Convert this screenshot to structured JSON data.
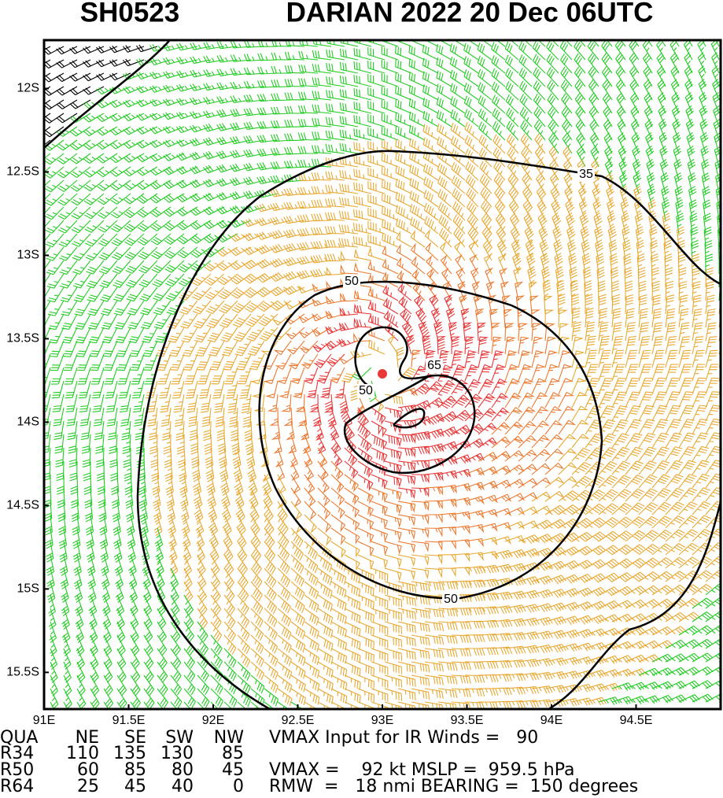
{
  "chart_data": {
    "type": "wind-barb",
    "storm_id": "SH0523",
    "title": "DARIAN 2022 20 Dec 06UTC",
    "xlim": [
      91,
      95
    ],
    "ylim": [
      -11.71,
      -15.72
    ],
    "xticks": [
      {
        "value": 91,
        "label": "91E"
      },
      {
        "value": 91.5,
        "label": "91.5E"
      },
      {
        "value": 92,
        "label": "92E"
      },
      {
        "value": 92.5,
        "label": "92.5E"
      },
      {
        "value": 93,
        "label": "93E"
      },
      {
        "value": 93.5,
        "label": "93.5E"
      },
      {
        "value": 94,
        "label": "94E"
      },
      {
        "value": 94.5,
        "label": "94.5E"
      }
    ],
    "yticks": [
      {
        "value": -12,
        "label": "12S"
      },
      {
        "value": -12.5,
        "label": "12.5S"
      },
      {
        "value": -13,
        "label": "13S"
      },
      {
        "value": -13.5,
        "label": "13.5S"
      },
      {
        "value": -14,
        "label": "14S"
      },
      {
        "value": -14.5,
        "label": "14.5S"
      },
      {
        "value": -15,
        "label": "15S"
      },
      {
        "value": -15.5,
        "label": "15.5S"
      }
    ],
    "contour_labels": [
      35,
      50,
      50,
      50,
      65
    ],
    "table": {
      "header": [
        "QUA",
        "NE",
        "SE",
        "SW",
        "NW"
      ],
      "rows": [
        [
          "R34",
          110,
          135,
          130,
          85
        ],
        [
          "R50",
          60,
          85,
          80,
          45
        ],
        [
          "R64",
          25,
          45,
          40,
          0
        ]
      ]
    },
    "notes": [
      "VMAX Input for IR Winds =   90",
      "VMAX =    92 kt MSLP =  959.5 hPa",
      "RMW  =   18 nmi BEARING =  150 degrees"
    ]
  }
}
